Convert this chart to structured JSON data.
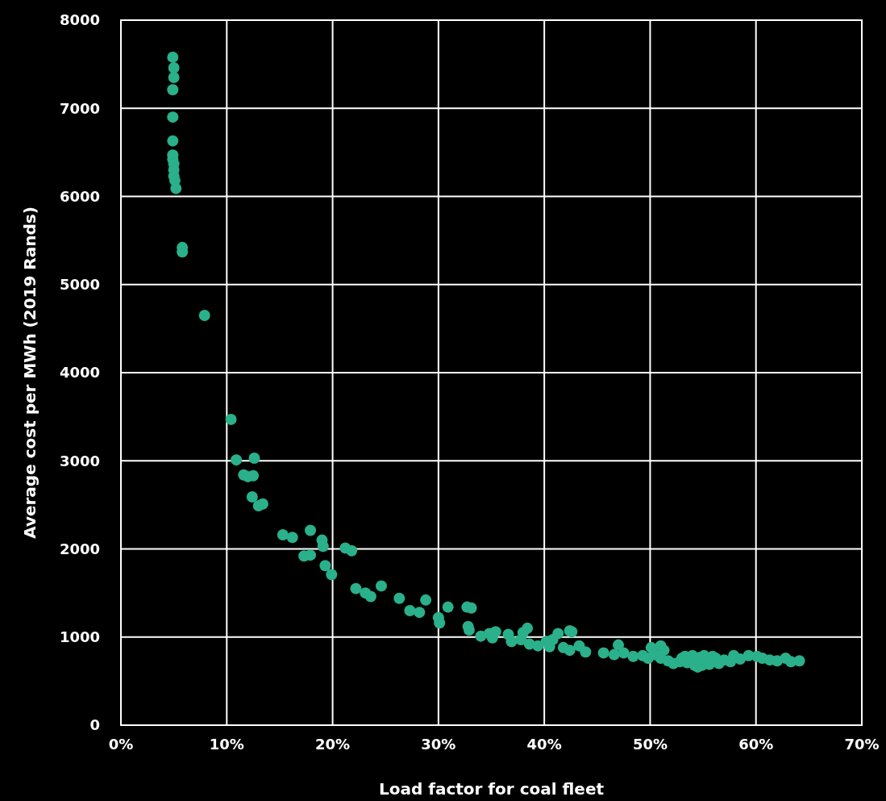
{
  "chart_data": {
    "type": "scatter",
    "xlabel": "Load factor for coal fleet",
    "ylabel": "Average cost per MWh (2019 Rands)",
    "xlim": [
      0,
      70
    ],
    "xticks": [
      {
        "value": 0,
        "label": "0%"
      },
      {
        "value": 10,
        "label": "10%"
      },
      {
        "value": 20,
        "label": "20%"
      },
      {
        "value": 30,
        "label": "30%"
      },
      {
        "value": 40,
        "label": "40%"
      },
      {
        "value": 50,
        "label": "50%"
      },
      {
        "value": 60,
        "label": "60%"
      },
      {
        "value": 70,
        "label": "70%"
      }
    ],
    "ylim": [
      0,
      8000
    ],
    "yticks": [
      0,
      1000,
      2000,
      3000,
      4000,
      5000,
      6000,
      7000,
      8000
    ],
    "grid": true,
    "marker": "circle",
    "series": [
      {
        "color": "#2ab08a",
        "x": [
          4.9,
          5.0,
          5.0,
          4.9,
          4.9,
          4.9,
          4.9,
          4.9,
          5.0,
          5.0,
          5.0,
          5.1,
          5.2,
          5.8,
          5.8,
          7.9,
          10.4,
          10.9,
          12.6,
          11.6,
          12.0,
          12.5,
          12.4,
          13.0,
          13.4,
          15.3,
          16.2,
          17.9,
          19.0,
          19.1,
          17.3,
          17.9,
          19.3,
          19.9,
          21.2,
          21.8,
          22.2,
          23.1,
          23.6,
          24.6,
          26.3,
          27.3,
          28.2,
          28.8,
          30.0,
          30.1,
          30.9,
          32.7,
          33.1,
          32.8,
          32.9,
          34.0,
          34.8,
          35.1,
          35.4,
          36.6,
          36.9,
          37.8,
          38.0,
          38.4,
          38.6,
          39.4,
          40.2,
          40.5,
          40.8,
          41.3,
          41.8,
          42.4,
          42.6,
          42.4,
          43.3,
          43.9,
          45.6,
          46.6,
          47.0,
          47.5,
          48.4,
          49.3,
          49.8,
          50.1,
          50.4,
          51.0,
          51.0,
          51.3,
          51.7,
          52.2,
          52.8,
          53.0,
          53.3,
          53.5,
          54.0,
          54.2,
          54.5,
          54.7,
          54.9,
          55.1,
          55.6,
          55.9,
          56.2,
          56.5,
          57.0,
          57.6,
          57.9,
          58.5,
          59.3,
          60.1,
          60.6,
          61.3,
          62.0,
          62.8,
          63.3,
          64.1
        ],
        "values": [
          7580,
          7460,
          7350,
          7210,
          6900,
          6630,
          6470,
          6420,
          6370,
          6300,
          6230,
          6180,
          6090,
          5420,
          5370,
          4650,
          3470,
          3010,
          3030,
          2840,
          2820,
          2830,
          2590,
          2490,
          2510,
          2160,
          2130,
          2210,
          2100,
          2030,
          1920,
          1930,
          1810,
          1710,
          2010,
          1980,
          1550,
          1500,
          1460,
          1580,
          1440,
          1300,
          1280,
          1420,
          1220,
          1160,
          1340,
          1340,
          1330,
          1120,
          1080,
          1010,
          1040,
          990,
          1060,
          1030,
          950,
          970,
          1050,
          1100,
          920,
          900,
          950,
          890,
          970,
          1040,
          880,
          850,
          1060,
          1070,
          900,
          830,
          820,
          800,
          910,
          820,
          780,
          790,
          760,
          880,
          800,
          900,
          760,
          850,
          730,
          700,
          720,
          760,
          780,
          710,
          790,
          680,
          660,
          770,
          680,
          790,
          690,
          780,
          760,
          700,
          740,
          720,
          790,
          750,
          790,
          780,
          760,
          740,
          730,
          760,
          720,
          730
        ]
      }
    ]
  }
}
